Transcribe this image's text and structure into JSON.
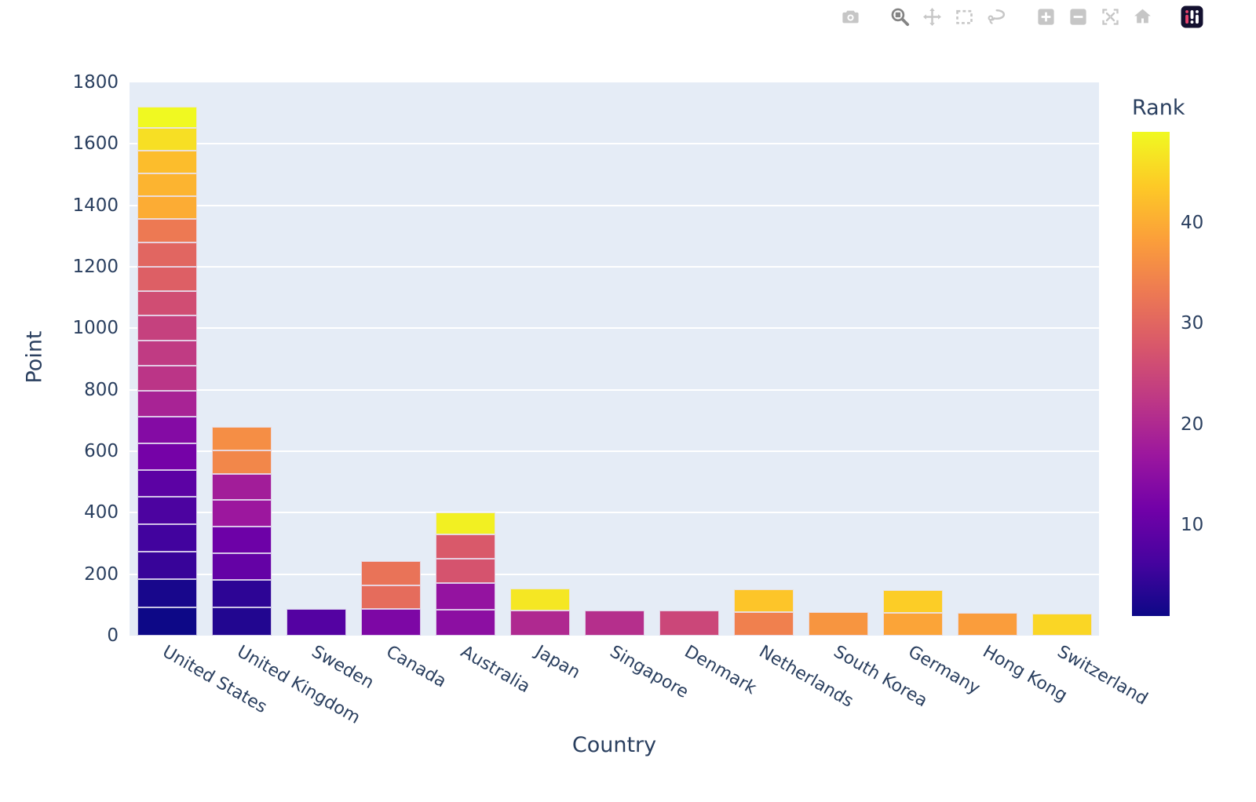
{
  "modebar": {
    "groups": [
      [
        "camera"
      ],
      [
        "zoom",
        "pan",
        "box-select",
        "lasso"
      ],
      [
        "zoom-in",
        "zoom-out",
        "autoscale",
        "home"
      ],
      [
        "plotly-logo"
      ]
    ],
    "active_button": "zoom"
  },
  "chart_data": {
    "type": "bar",
    "stacked": true,
    "title": "",
    "xlabel": "Country",
    "ylabel": "Point",
    "ylim": [
      0,
      1800
    ],
    "yticks": [
      0,
      200,
      400,
      600,
      800,
      1000,
      1200,
      1400,
      1600,
      1800
    ],
    "grid": true,
    "legend_position": "colorbar-right",
    "categories": [
      "United States",
      "United Kingdom",
      "Sweden",
      "Canada",
      "Australia",
      "Japan",
      "Singapore",
      "Denmark",
      "Netherlands",
      "South Korea",
      "Germany",
      "Hong Kong",
      "Switzerland"
    ],
    "bars": [
      {
        "country": "United States",
        "total": 1721,
        "segments": [
          {
            "rank": 1,
            "value": 92
          },
          {
            "rank": 2,
            "value": 91
          },
          {
            "rank": 5,
            "value": 90
          },
          {
            "rank": 6,
            "value": 89
          },
          {
            "rank": 7,
            "value": 89
          },
          {
            "rank": 9,
            "value": 88
          },
          {
            "rank": 12,
            "value": 87
          },
          {
            "rank": 14,
            "value": 86
          },
          {
            "rank": 19,
            "value": 84
          },
          {
            "rank": 22,
            "value": 82
          },
          {
            "rank": 23,
            "value": 82
          },
          {
            "rank": 24,
            "value": 81
          },
          {
            "rank": 26,
            "value": 81
          },
          {
            "rank": 29,
            "value": 79
          },
          {
            "rank": 30,
            "value": 79
          },
          {
            "rank": 33,
            "value": 77
          },
          {
            "rank": 40,
            "value": 74
          },
          {
            "rank": 41,
            "value": 74
          },
          {
            "rank": 42,
            "value": 74
          },
          {
            "rank": 46,
            "value": 72
          },
          {
            "rank": 49,
            "value": 70
          }
        ]
      },
      {
        "country": "United Kingdom",
        "total": 678,
        "segments": [
          {
            "rank": 3,
            "value": 91
          },
          {
            "rank": 4,
            "value": 90
          },
          {
            "rank": 10,
            "value": 88
          },
          {
            "rank": 11,
            "value": 87
          },
          {
            "rank": 17,
            "value": 85
          },
          {
            "rank": 18,
            "value": 84
          },
          {
            "rank": 35,
            "value": 77
          },
          {
            "rank": 36,
            "value": 76
          }
        ]
      },
      {
        "country": "Sweden",
        "total": 88,
        "segments": [
          {
            "rank": 8,
            "value": 88
          }
        ]
      },
      {
        "country": "Canada",
        "total": 242,
        "segments": [
          {
            "rank": 13,
            "value": 86
          },
          {
            "rank": 31,
            "value": 78
          },
          {
            "rank": 32,
            "value": 78
          }
        ]
      },
      {
        "country": "Australia",
        "total": 401,
        "segments": [
          {
            "rank": 15,
            "value": 85
          },
          {
            "rank": 16,
            "value": 85
          },
          {
            "rank": 27,
            "value": 80
          },
          {
            "rank": 28,
            "value": 80
          },
          {
            "rank": 48,
            "value": 71
          }
        ]
      },
      {
        "country": "Japan",
        "total": 154,
        "segments": [
          {
            "rank": 20,
            "value": 83
          },
          {
            "rank": 47,
            "value": 71
          }
        ]
      },
      {
        "country": "Singapore",
        "total": 83,
        "segments": [
          {
            "rank": 21,
            "value": 83
          }
        ]
      },
      {
        "country": "Denmark",
        "total": 81,
        "segments": [
          {
            "rank": 25,
            "value": 81
          }
        ]
      },
      {
        "country": "Netherlands",
        "total": 150,
        "segments": [
          {
            "rank": 34,
            "value": 77
          },
          {
            "rank": 43,
            "value": 73
          }
        ]
      },
      {
        "country": "South Korea",
        "total": 76,
        "segments": [
          {
            "rank": 37,
            "value": 76
          }
        ]
      },
      {
        "country": "Germany",
        "total": 148,
        "segments": [
          {
            "rank": 39,
            "value": 75
          },
          {
            "rank": 44,
            "value": 73
          }
        ]
      },
      {
        "country": "Hong Kong",
        "total": 75,
        "segments": [
          {
            "rank": 38,
            "value": 75
          }
        ]
      },
      {
        "country": "Switzerland",
        "total": 72,
        "segments": [
          {
            "rank": 45,
            "value": 72
          }
        ]
      }
    ],
    "colorbar": {
      "title": "Rank",
      "min": 1,
      "max": 49,
      "ticks": [
        10,
        20,
        30,
        40
      ]
    },
    "colorscale": {
      "name": "plasma",
      "stops": [
        [
          0.0,
          "#0d0887"
        ],
        [
          0.1111,
          "#46039f"
        ],
        [
          0.2222,
          "#7201a8"
        ],
        [
          0.3333,
          "#9c179e"
        ],
        [
          0.4444,
          "#bd3786"
        ],
        [
          0.5556,
          "#d8576b"
        ],
        [
          0.6667,
          "#ed7953"
        ],
        [
          0.7778,
          "#fb9f3a"
        ],
        [
          0.8889,
          "#fdca26"
        ],
        [
          1.0,
          "#f0f921"
        ]
      ]
    },
    "colors": {
      "paper_bg": "#ffffff",
      "plot_bg": "#e5ecf6",
      "grid": "#ffffff",
      "font": "#2a3f5f",
      "modebar_icon": "#c6c6c6",
      "modebar_icon_active": "#848484",
      "logo_bg": "#13102f",
      "logo_accent": "#e8426d"
    }
  }
}
